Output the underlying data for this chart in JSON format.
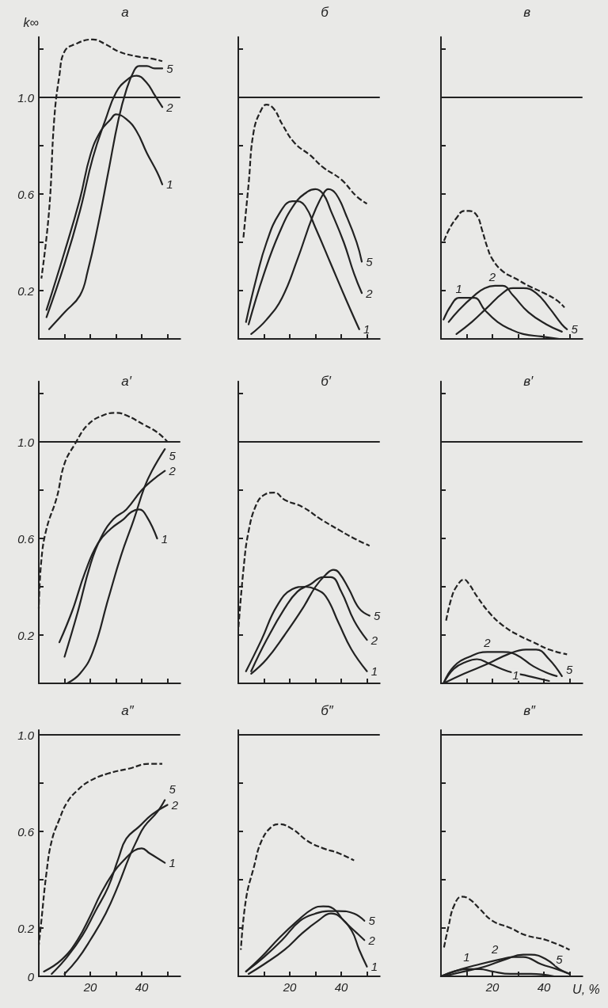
{
  "chart_data": [
    {
      "type": "line",
      "title": "а",
      "ylabel": "k∞",
      "xlim": [
        0,
        55
      ],
      "xticks": [
        {
          "value": 10,
          "label": null
        },
        {
          "value": 20,
          "label": null
        },
        {
          "value": 30,
          "label": null
        },
        {
          "value": 40,
          "label": null
        },
        {
          "value": 50,
          "label": null
        }
      ],
      "ylim": [
        0,
        1.25
      ],
      "yticks": [
        0.2,
        {
          "value": 0.4,
          "label": null
        },
        0.6,
        {
          "value": 0.8,
          "label": null
        },
        {
          "value": 1,
          "label": "1.0"
        },
        {
          "value": 1.2,
          "label": null
        }
      ],
      "tick_labels": "y",
      "marker": "none",
      "line_style": "solid",
      "ref_lines": [
        {
          "axis": "y",
          "value": 1,
          "color": "#222222"
        }
      ],
      "series": [
        {
          "name": "1",
          "color": "#222222",
          "x": [
            3,
            10,
            16,
            20,
            24,
            28,
            30,
            34,
            38,
            42,
            46,
            48
          ],
          "values": [
            0.12,
            0.36,
            0.58,
            0.76,
            0.86,
            0.91,
            0.93,
            0.91,
            0.86,
            0.77,
            0.69,
            0.64
          ]
        },
        {
          "name": "2",
          "color": "#222222",
          "x": [
            3,
            10,
            16,
            21,
            26,
            30,
            34,
            38,
            42,
            45,
            48
          ],
          "values": [
            0.09,
            0.31,
            0.53,
            0.75,
            0.91,
            1.02,
            1.07,
            1.09,
            1.06,
            1.01,
            0.96
          ]
        },
        {
          "name": "5",
          "color": "#222222",
          "x": [
            4,
            10,
            16,
            19,
            23,
            27,
            31,
            34,
            37,
            39,
            42,
            45,
            48
          ],
          "values": [
            0.04,
            0.11,
            0.18,
            0.28,
            0.47,
            0.69,
            0.91,
            1.03,
            1.11,
            1.13,
            1.13,
            1.12,
            1.12
          ]
        },
        {
          "color": "#222222",
          "line_style": "dashed",
          "x": [
            1,
            4,
            6,
            8,
            10,
            14,
            21,
            26,
            31,
            38,
            44,
            48
          ],
          "values": [
            0.25,
            0.53,
            0.91,
            1.09,
            1.19,
            1.22,
            1.24,
            1.22,
            1.19,
            1.17,
            1.16,
            1.15
          ]
        }
      ]
    },
    {
      "type": "line",
      "title": "б",
      "xlim": [
        0,
        55
      ],
      "xticks": [
        {
          "value": 10,
          "label": null
        },
        {
          "value": 20,
          "label": null
        },
        {
          "value": 30,
          "label": null
        },
        {
          "value": 40,
          "label": null
        },
        {
          "value": 50,
          "label": null
        }
      ],
      "ylim": [
        0,
        1.25
      ],
      "yticks": [
        {
          "value": 0.2,
          "label": null
        },
        {
          "value": 0.4,
          "label": null
        },
        {
          "value": 0.6,
          "label": null
        },
        {
          "value": 0.8,
          "label": null
        },
        {
          "value": 1,
          "label": null
        },
        {
          "value": 1.2,
          "label": null
        }
      ],
      "tick_labels": false,
      "marker": "none",
      "line_style": "solid",
      "ref_lines": [
        {
          "axis": "y",
          "value": 1,
          "color": "#222222"
        }
      ],
      "series": [
        {
          "name": "1",
          "color": "#222222",
          "x": [
            3,
            7,
            11,
            16,
            21,
            23,
            26,
            30,
            36,
            42,
            47
          ],
          "values": [
            0.07,
            0.25,
            0.4,
            0.52,
            0.57,
            0.57,
            0.55,
            0.46,
            0.31,
            0.16,
            0.04
          ]
        },
        {
          "name": "2",
          "color": "#222222",
          "x": [
            4,
            10,
            16,
            22,
            27,
            30,
            33,
            36,
            41,
            45,
            48
          ],
          "values": [
            0.06,
            0.27,
            0.44,
            0.56,
            0.61,
            0.62,
            0.6,
            0.53,
            0.4,
            0.27,
            0.19
          ]
        },
        {
          "name": "5",
          "color": "#222222",
          "x": [
            5,
            11,
            17,
            23,
            29,
            33,
            35,
            38,
            42,
            46,
            48
          ],
          "values": [
            0.02,
            0.08,
            0.17,
            0.33,
            0.51,
            0.6,
            0.62,
            0.6,
            0.51,
            0.4,
            0.32
          ]
        },
        {
          "color": "#222222",
          "line_style": "dashed",
          "x": [
            2,
            4,
            6,
            9,
            11,
            14,
            17,
            22,
            28,
            33,
            40,
            46,
            50
          ],
          "values": [
            0.42,
            0.64,
            0.86,
            0.95,
            0.97,
            0.95,
            0.89,
            0.81,
            0.76,
            0.71,
            0.66,
            0.59,
            0.56
          ]
        }
      ]
    },
    {
      "type": "line",
      "title": "в",
      "xlim": [
        0,
        55
      ],
      "xticks": [
        {
          "value": 10,
          "label": null
        },
        {
          "value": 20,
          "label": null
        },
        {
          "value": 30,
          "label": null
        },
        {
          "value": 40,
          "label": null
        },
        {
          "value": 50,
          "label": null
        }
      ],
      "ylim": [
        0,
        1.25
      ],
      "yticks": [
        {
          "value": 0.2,
          "label": null
        },
        {
          "value": 0.4,
          "label": null
        },
        {
          "value": 0.6,
          "label": null
        },
        {
          "value": 0.8,
          "label": null
        },
        {
          "value": 1,
          "label": null
        },
        {
          "value": 1.2,
          "label": null
        }
      ],
      "tick_labels": false,
      "marker": "none",
      "line_style": "solid",
      "ref_lines": [
        {
          "axis": "y",
          "value": 1,
          "color": "#222222"
        }
      ],
      "series": [
        {
          "name": "1",
          "color": "#222222",
          "x": [
            1,
            4,
            7,
            10,
            13,
            17,
            22,
            27,
            32,
            39,
            46
          ],
          "values": [
            0.08,
            0.14,
            0.17,
            0.17,
            0.17,
            0.12,
            0.07,
            0.04,
            0.02,
            0.01,
            0
          ]
        },
        {
          "name": "2",
          "color": "#222222",
          "x": [
            3,
            7,
            13,
            17,
            21,
            24,
            28,
            34,
            41,
            47
          ],
          "values": [
            0.07,
            0.12,
            0.18,
            0.21,
            0.22,
            0.22,
            0.18,
            0.11,
            0.06,
            0.03
          ]
        },
        {
          "name": "5",
          "color": "#222222",
          "x": [
            6,
            12,
            18,
            24,
            28,
            32,
            37,
            42,
            47,
            49
          ],
          "values": [
            0.02,
            0.07,
            0.13,
            0.19,
            0.21,
            0.21,
            0.19,
            0.13,
            0.06,
            0.04
          ]
        },
        {
          "color": "#222222",
          "line_style": "dashed",
          "x": [
            1,
            3,
            6,
            9,
            11,
            14,
            16,
            18,
            20,
            24,
            29,
            34,
            40,
            45,
            48
          ],
          "values": [
            0.4,
            0.45,
            0.5,
            0.53,
            0.53,
            0.51,
            0.45,
            0.38,
            0.33,
            0.28,
            0.25,
            0.22,
            0.19,
            0.16,
            0.13
          ]
        }
      ]
    },
    {
      "type": "line",
      "title": "а′",
      "xlim": [
        0,
        55
      ],
      "xticks": [
        {
          "value": 10,
          "label": null
        },
        {
          "value": 20,
          "label": null
        },
        {
          "value": 30,
          "label": null
        },
        {
          "value": 40,
          "label": null
        },
        {
          "value": 50,
          "label": null
        }
      ],
      "ylim": [
        0,
        1.25
      ],
      "yticks": [
        0.2,
        {
          "value": 0.4,
          "label": null
        },
        0.6,
        {
          "value": 0.8,
          "label": null
        },
        {
          "value": 1,
          "label": "1.0"
        },
        {
          "value": 1.2,
          "label": null
        }
      ],
      "tick_labels": "y",
      "marker": "none",
      "line_style": "solid",
      "ref_lines": [
        {
          "axis": "y",
          "value": 1,
          "color": "#222222"
        }
      ],
      "series": [
        {
          "name": "1",
          "color": "#222222",
          "x": [
            8,
            13,
            18,
            23,
            28,
            33,
            36,
            39,
            42,
            46
          ],
          "values": [
            0.17,
            0.3,
            0.46,
            0.58,
            0.64,
            0.68,
            0.71,
            0.72,
            0.69,
            0.6
          ]
        },
        {
          "name": "2",
          "color": "#222222",
          "x": [
            10,
            15,
            20,
            24,
            29,
            34,
            40,
            44,
            49
          ],
          "values": [
            0.11,
            0.29,
            0.49,
            0.6,
            0.68,
            0.72,
            0.8,
            0.84,
            0.88
          ]
        },
        {
          "name": "5",
          "color": "#222222",
          "x": [
            11,
            16,
            21,
            27,
            32,
            37,
            41,
            44,
            49
          ],
          "values": [
            0,
            0.04,
            0.13,
            0.35,
            0.53,
            0.68,
            0.81,
            0.88,
            0.97
          ]
        },
        {
          "color": "#222222",
          "line_style": "dashed",
          "x": [
            0,
            1,
            3,
            7,
            10,
            14,
            19,
            25,
            30,
            34,
            41,
            46,
            50
          ],
          "values": [
            0.31,
            0.51,
            0.64,
            0.77,
            0.91,
            0.99,
            1.07,
            1.11,
            1.12,
            1.11,
            1.07,
            1.04,
            1
          ]
        }
      ]
    },
    {
      "type": "line",
      "title": "б′",
      "xlim": [
        0,
        55
      ],
      "xticks": [
        {
          "value": 10,
          "label": null
        },
        {
          "value": 20,
          "label": null
        },
        {
          "value": 30,
          "label": null
        },
        {
          "value": 40,
          "label": null
        },
        {
          "value": 50,
          "label": null
        }
      ],
      "ylim": [
        0,
        1.25
      ],
      "yticks": [
        {
          "value": 0.2,
          "label": null
        },
        {
          "value": 0.4,
          "label": null
        },
        {
          "value": 0.6,
          "label": null
        },
        {
          "value": 0.8,
          "label": null
        },
        {
          "value": 1,
          "label": null
        },
        {
          "value": 1.2,
          "label": null
        }
      ],
      "tick_labels": false,
      "marker": "none",
      "line_style": "solid",
      "ref_lines": [
        {
          "axis": "y",
          "value": 1,
          "color": "#222222"
        }
      ],
      "series": [
        {
          "name": "1",
          "color": "#222222",
          "x": [
            3,
            9,
            15,
            21,
            26,
            30,
            34,
            39,
            44,
            50
          ],
          "values": [
            0.05,
            0.18,
            0.32,
            0.39,
            0.4,
            0.39,
            0.36,
            0.25,
            0.14,
            0.05
          ]
        },
        {
          "name": "2",
          "color": "#222222",
          "x": [
            5,
            11,
            18,
            23,
            28,
            33,
            36,
            40,
            45,
            50
          ],
          "values": [
            0.05,
            0.18,
            0.31,
            0.38,
            0.41,
            0.44,
            0.44,
            0.38,
            0.26,
            0.18
          ]
        },
        {
          "name": "5",
          "color": "#222222",
          "x": [
            5,
            11,
            18,
            25,
            30,
            34,
            37,
            39,
            43,
            47,
            51
          ],
          "values": [
            0.04,
            0.1,
            0.2,
            0.31,
            0.4,
            0.45,
            0.47,
            0.46,
            0.39,
            0.31,
            0.28
          ]
        },
        {
          "color": "#222222",
          "line_style": "dashed",
          "x": [
            0,
            2,
            4,
            7,
            10,
            14,
            18,
            25,
            32,
            40,
            45,
            51
          ],
          "values": [
            0.22,
            0.47,
            0.63,
            0.74,
            0.78,
            0.79,
            0.76,
            0.73,
            0.68,
            0.63,
            0.6,
            0.57
          ]
        }
      ]
    },
    {
      "type": "line",
      "title": "в′",
      "xlim": [
        0,
        55
      ],
      "xticks": [
        {
          "value": 10,
          "label": null
        },
        {
          "value": 20,
          "label": null
        },
        {
          "value": 30,
          "label": null
        },
        {
          "value": 40,
          "label": null
        },
        {
          "value": 50,
          "label": null
        }
      ],
      "ylim": [
        0,
        1.25
      ],
      "yticks": [
        {
          "value": 0.2,
          "label": null
        },
        {
          "value": 0.4,
          "label": null
        },
        {
          "value": 0.6,
          "label": null
        },
        {
          "value": 0.8,
          "label": null
        },
        {
          "value": 1,
          "label": null
        },
        {
          "value": 1.2,
          "label": null
        }
      ],
      "tick_labels": false,
      "marker": "none",
      "line_style": "solid",
      "ref_lines": [
        {
          "axis": "y",
          "value": 1,
          "color": "#222222"
        }
      ],
      "series": [
        {
          "name": "1",
          "color": "#222222",
          "x": [
            1,
            5,
            10,
            14,
            19,
            26,
            34,
            42
          ],
          "values": [
            0,
            0.06,
            0.09,
            0.1,
            0.08,
            0.05,
            0.03,
            0.01
          ]
        },
        {
          "name": "2",
          "color": "#222222",
          "x": [
            1,
            5,
            11,
            18,
            24,
            29,
            36,
            42,
            45
          ],
          "values": [
            0,
            0.07,
            0.11,
            0.13,
            0.13,
            0.12,
            0.07,
            0.04,
            0.03
          ]
        },
        {
          "name": "5",
          "color": "#222222",
          "x": [
            1,
            9,
            18,
            26,
            33,
            37,
            42,
            47
          ],
          "values": [
            0,
            0.04,
            0.08,
            0.12,
            0.14,
            0.14,
            0.1,
            0.03
          ]
        },
        {
          "color": "#222222",
          "line_style": "dashed",
          "x": [
            2,
            4,
            6,
            9,
            11,
            14,
            19,
            24,
            30,
            36,
            42,
            49
          ],
          "values": [
            0.26,
            0.35,
            0.4,
            0.43,
            0.41,
            0.36,
            0.29,
            0.24,
            0.2,
            0.17,
            0.14,
            0.12
          ]
        }
      ]
    },
    {
      "type": "line",
      "title": "а″",
      "xlim": [
        0,
        55
      ],
      "xticks": [
        {
          "value": 10,
          "label": null
        },
        {
          "value": 20,
          "label": "20"
        },
        {
          "value": 30,
          "label": null
        },
        {
          "value": 40,
          "label": "40"
        },
        {
          "value": 50,
          "label": null
        }
      ],
      "ylim": [
        0,
        1.02
      ],
      "yticks": [
        0,
        0.2,
        {
          "value": 0.4,
          "label": null
        },
        0.6,
        {
          "value": 0.8,
          "label": null
        },
        {
          "value": 1,
          "label": "1.0"
        }
      ],
      "marker": "none",
      "line_style": "solid",
      "ref_lines": [
        {
          "axis": "y",
          "value": 1,
          "color": "#222222"
        }
      ],
      "series": [
        {
          "name": "1",
          "color": "#222222",
          "x": [
            2,
            9,
            15,
            20,
            24,
            29,
            33,
            37,
            40,
            43,
            49
          ],
          "values": [
            0.02,
            0.07,
            0.15,
            0.25,
            0.34,
            0.43,
            0.48,
            0.52,
            0.53,
            0.51,
            0.47
          ]
        },
        {
          "name": "2",
          "color": "#222222",
          "x": [
            5,
            11,
            17,
            22,
            27,
            31,
            34,
            39,
            44,
            50
          ],
          "values": [
            0.01,
            0.08,
            0.17,
            0.27,
            0.37,
            0.49,
            0.57,
            0.62,
            0.67,
            0.71
          ]
        },
        {
          "name": "5",
          "color": "#222222",
          "x": [
            10,
            15,
            20,
            26,
            31,
            35,
            38,
            41,
            46,
            49
          ],
          "values": [
            0.01,
            0.07,
            0.15,
            0.26,
            0.38,
            0.49,
            0.56,
            0.62,
            0.68,
            0.73
          ]
        },
        {
          "color": "#222222",
          "line_style": "dashed",
          "x": [
            0,
            1,
            3,
            5,
            8,
            11,
            15,
            20,
            27,
            35,
            43,
            48
          ],
          "values": [
            0.13,
            0.23,
            0.43,
            0.56,
            0.65,
            0.72,
            0.77,
            0.81,
            0.84,
            0.86,
            0.88,
            0.88
          ]
        }
      ]
    },
    {
      "type": "line",
      "title": "б″",
      "xlim": [
        0,
        55
      ],
      "xticks": [
        {
          "value": 10,
          "label": null
        },
        {
          "value": 20,
          "label": "20"
        },
        {
          "value": 30,
          "label": null
        },
        {
          "value": 40,
          "label": "40"
        },
        {
          "value": 50,
          "label": null
        }
      ],
      "ylim": [
        0,
        1.02
      ],
      "yticks": [
        {
          "value": 0,
          "label": null
        },
        {
          "value": 0.2,
          "label": null
        },
        {
          "value": 0.4,
          "label": null
        },
        {
          "value": 0.6,
          "label": null
        },
        {
          "value": 0.8,
          "label": null
        },
        {
          "value": 1,
          "label": null
        }
      ],
      "tick_labels": "x",
      "marker": "none",
      "line_style": "solid",
      "ref_lines": [
        {
          "axis": "y",
          "value": 1,
          "color": "#222222"
        }
      ],
      "series": [
        {
          "name": "1",
          "color": "#222222",
          "x": [
            4,
            10,
            18,
            25,
            31,
            36,
            39,
            44,
            47,
            50
          ],
          "values": [
            0.01,
            0.05,
            0.11,
            0.18,
            0.23,
            0.26,
            0.25,
            0.19,
            0.11,
            0.04
          ]
        },
        {
          "name": "2",
          "color": "#222222",
          "x": [
            3,
            9,
            16,
            23,
            29,
            33,
            37,
            41,
            46,
            49
          ],
          "values": [
            0.02,
            0.08,
            0.16,
            0.23,
            0.28,
            0.29,
            0.28,
            0.23,
            0.18,
            0.15
          ]
        },
        {
          "name": "5",
          "color": "#222222",
          "x": [
            3,
            10,
            17,
            24,
            30,
            35,
            39,
            45,
            49
          ],
          "values": [
            0.02,
            0.08,
            0.15,
            0.23,
            0.26,
            0.27,
            0.27,
            0.26,
            0.23
          ]
        },
        {
          "color": "#222222",
          "line_style": "dashed",
          "x": [
            1,
            3,
            6,
            9,
            13,
            16,
            21,
            27,
            33,
            39,
            45
          ],
          "values": [
            0.11,
            0.32,
            0.45,
            0.56,
            0.62,
            0.63,
            0.61,
            0.56,
            0.53,
            0.51,
            0.48
          ]
        }
      ]
    },
    {
      "type": "line",
      "title": "в″",
      "xlabel": "U, %",
      "xlim": [
        0,
        55
      ],
      "xticks": [
        {
          "value": 10,
          "label": null
        },
        {
          "value": 20,
          "label": "20"
        },
        {
          "value": 30,
          "label": null
        },
        {
          "value": 40,
          "label": "40"
        },
        {
          "value": 50,
          "label": null
        }
      ],
      "ylim": [
        0,
        1.02
      ],
      "yticks": [
        {
          "value": 0,
          "label": null
        },
        {
          "value": 0.2,
          "label": null
        },
        {
          "value": 0.4,
          "label": null
        },
        {
          "value": 0.6,
          "label": null
        },
        {
          "value": 0.8,
          "label": null
        },
        {
          "value": 1,
          "label": null
        }
      ],
      "tick_labels": "x",
      "marker": "none",
      "line_style": "solid",
      "ref_lines": [
        {
          "axis": "y",
          "value": 1,
          "color": "#222222"
        }
      ],
      "series": [
        {
          "name": "1",
          "color": "#222222",
          "x": [
            0,
            5,
            10,
            15,
            20,
            27,
            35,
            44
          ],
          "values": [
            0,
            0.02,
            0.03,
            0.03,
            0.02,
            0.01,
            0.01,
            0
          ]
        },
        {
          "name": "2",
          "color": "#222222",
          "x": [
            0,
            8,
            15,
            23,
            28,
            32,
            39,
            45,
            50
          ],
          "values": [
            0,
            0.03,
            0.05,
            0.07,
            0.08,
            0.08,
            0.05,
            0.03,
            0.01
          ]
        },
        {
          "name": "5",
          "color": "#222222",
          "x": [
            1,
            9,
            17,
            25,
            32,
            35,
            41,
            46,
            50
          ],
          "values": [
            0,
            0.02,
            0.04,
            0.07,
            0.09,
            0.09,
            0.07,
            0.03,
            0.01
          ]
        },
        {
          "color": "#222222",
          "line_style": "dashed",
          "x": [
            1,
            3,
            5,
            8,
            11,
            15,
            20,
            27,
            33,
            41,
            50
          ],
          "values": [
            0.11,
            0.21,
            0.29,
            0.33,
            0.32,
            0.28,
            0.23,
            0.2,
            0.17,
            0.15,
            0.11
          ]
        }
      ]
    }
  ]
}
